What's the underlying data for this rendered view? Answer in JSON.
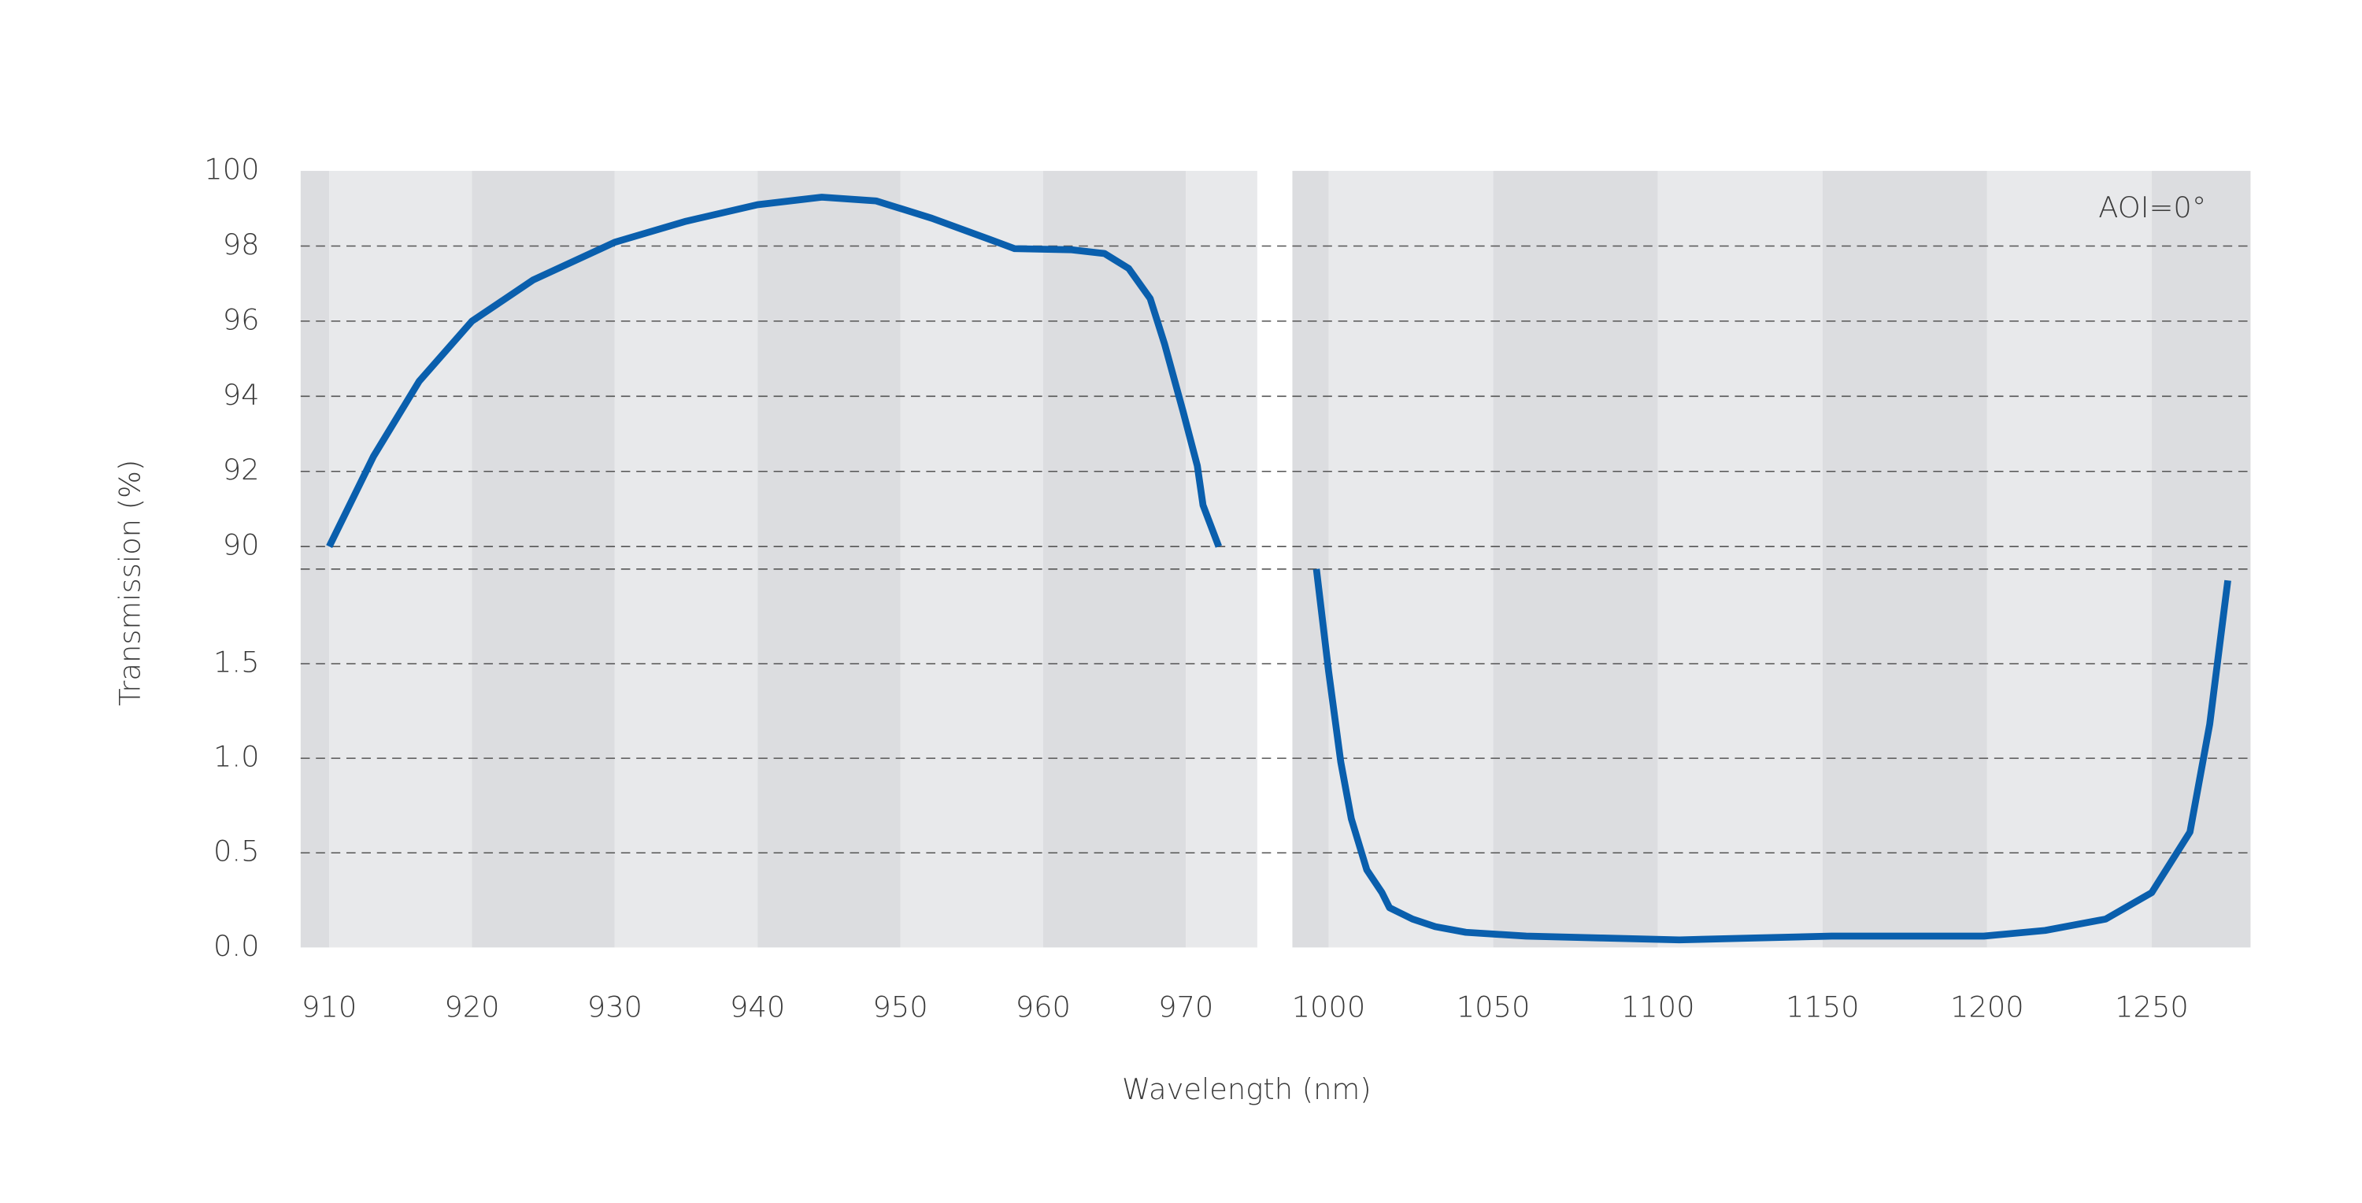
{
  "chart_data": {
    "type": "line",
    "xlabel": "Wavelength (nm)",
    "ylabel": "Transmission (%)",
    "annotation": "AOI=0°",
    "grid": true,
    "y_axes": [
      {
        "ylim": [
          89.4,
          100
        ],
        "yticks": [
          90,
          92,
          94,
          96,
          98,
          100
        ]
      },
      {
        "ylim": [
          0,
          2
        ],
        "yticks": [
          {
            "value": 0,
            "label": "0.0"
          },
          0.5,
          {
            "value": 1,
            "label": "1.0"
          },
          1.5
        ]
      }
    ],
    "panels": [
      {
        "xlim": [
          908,
          975
        ],
        "xticks": [
          910,
          920,
          930,
          940,
          950,
          960,
          970
        ],
        "series": [
          {
            "color": "#0a5fad",
            "axis": 0,
            "x": [
              910,
              913.1,
              916.3,
              920,
              924.3,
              930,
              935,
              940,
              944.5,
              948.3,
              952.2,
              956.3,
              958,
              962,
              964.3,
              966,
              967.5,
              968.5,
              969.8,
              970.8,
              971.2,
              972.3
            ],
            "values": [
              90.0,
              92.4,
              94.4,
              96.0,
              97.1,
              98.1,
              98.66,
              99.1,
              99.3,
              99.2,
              98.74,
              98.17,
              97.93,
              97.9,
              97.8,
              97.4,
              96.6,
              95.4,
              93.6,
              92.15,
              91.1,
              90.0
            ]
          }
        ]
      },
      {
        "xlim": [
          989,
          1280
        ],
        "xticks": [
          1000,
          1050,
          1100,
          1150,
          1200,
          1250
        ],
        "series": [
          {
            "color": "#0a5fad",
            "axis": 1,
            "x": [
              996.3,
              1000,
              1003.7,
              1006.9,
              1011.6,
              1016.2,
              1018.5,
              1025.5,
              1032.4,
              1041.7,
              1050.9,
              1060,
              1083,
              1106.5,
              1129.6,
              1152.8,
              1176,
              1199,
              1217.6,
              1236,
              1250,
              1261.6,
              1267.6,
              1273.1
            ],
            "values": [
              2.0,
              1.46,
              0.98,
              0.68,
              0.41,
              0.29,
              0.21,
              0.15,
              0.11,
              0.08,
              0.07,
              0.06,
              0.05,
              0.04,
              0.05,
              0.06,
              0.06,
              0.06,
              0.09,
              0.15,
              0.29,
              0.61,
              1.18,
              1.94
            ]
          }
        ]
      }
    ]
  }
}
